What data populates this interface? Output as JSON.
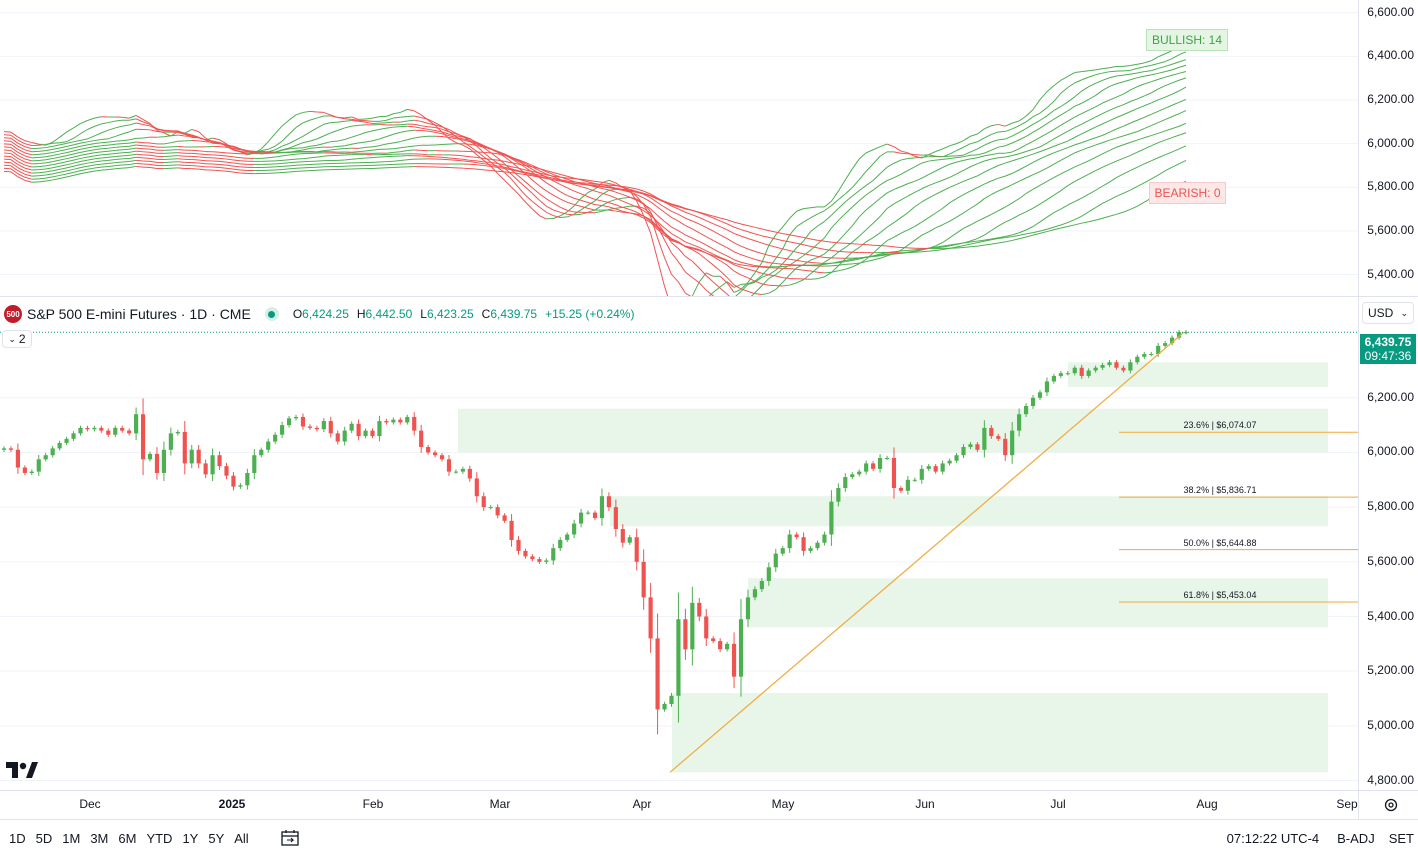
{
  "symbol": {
    "badge": "500",
    "title": "S&P 500 E-mini Futures · 1D · CME",
    "open_label": "O",
    "open": "6,424.25",
    "high_label": "H",
    "high": "6,442.50",
    "low_label": "L",
    "low": "6,423.25",
    "close_label": "C",
    "close": "6,439.75",
    "change": "+15.25 (+0.24%)"
  },
  "collapse_count": "2",
  "currency": "USD",
  "last_price": "6,439.75",
  "countdown": "09:47:36",
  "indicator": {
    "bullish_label": "BULLISH: 14",
    "bearish_label": "BEARISH: 0",
    "axis_ticks": [
      "6,600.00",
      "6,400.00",
      "6,200.00",
      "6,000.00",
      "5,800.00",
      "5,600.00",
      "5,400.00"
    ]
  },
  "price_axis_ticks": [
    "6,200.00",
    "6,000.00",
    "5,800.00",
    "5,600.00",
    "5,400.00",
    "5,200.00",
    "5,000.00",
    "4,800.00"
  ],
  "time_axis": [
    "Dec",
    "2025",
    "Feb",
    "Mar",
    "Apr",
    "May",
    "Jun",
    "Jul",
    "Aug",
    "Sep"
  ],
  "fib_levels": [
    {
      "label": "23.6% | $6,074.07",
      "price": 6074.07
    },
    {
      "label": "38.2% | $5,836.71",
      "price": 5836.71
    },
    {
      "label": "50.0% | $5,644.88",
      "price": 5644.88
    },
    {
      "label": "61.8% | $5,453.04",
      "price": 5453.04
    }
  ],
  "ranges": [
    "1D",
    "5D",
    "1M",
    "3M",
    "6M",
    "YTD",
    "1Y",
    "5Y",
    "All"
  ],
  "clock": "07:12:22 UTC-4",
  "adjust": "B-ADJ",
  "session": "SET",
  "colors": {
    "up": "#4caf50",
    "down": "#ef5350",
    "neutral": "#f5d02a",
    "zone": "#e8f5e9",
    "fib": "#f2a93b",
    "trend": "#f2a93b",
    "accent": "#089981"
  },
  "chart_data": {
    "type": "candlestick",
    "closes": [
      6015,
      6010,
      5945,
      5925,
      5930,
      5975,
      5990,
      6015,
      6035,
      6050,
      6070,
      6090,
      6085,
      6090,
      6080,
      6065,
      6090,
      6080,
      6070,
      6140,
      5975,
      5995,
      5925,
      6010,
      6070,
      6075,
      5960,
      6010,
      5960,
      5920,
      5990,
      5950,
      5915,
      5875,
      5880,
      5925,
      5990,
      6010,
      6040,
      6065,
      6100,
      6125,
      6130,
      6095,
      6090,
      6085,
      6115,
      6070,
      6040,
      6080,
      6105,
      6060,
      6080,
      6060,
      6115,
      6110,
      6120,
      6110,
      6130,
      6080,
      6020,
      6000,
      5990,
      5975,
      5930,
      5930,
      5940,
      5905,
      5840,
      5800,
      5800,
      5770,
      5750,
      5680,
      5640,
      5620,
      5610,
      5600,
      5605,
      5650,
      5680,
      5700,
      5740,
      5780,
      5780,
      5760,
      5840,
      5800,
      5720,
      5670,
      5690,
      5600,
      5470,
      5320,
      5060,
      5080,
      5110,
      5390,
      5280,
      5450,
      5400,
      5320,
      5310,
      5280,
      5300,
      5180,
      5390,
      5470,
      5500,
      5530,
      5580,
      5630,
      5650,
      5700,
      5690,
      5640,
      5650,
      5670,
      5700,
      5820,
      5870,
      5910,
      5920,
      5930,
      5960,
      5940,
      5980,
      5980,
      5870,
      5860,
      5900,
      5900,
      5940,
      5950,
      5930,
      5960,
      5970,
      5990,
      6020,
      6030,
      6010,
      6090,
      6060,
      6050,
      5990,
      6080,
      6140,
      6170,
      6200,
      6220,
      6260,
      6280,
      6290,
      6290,
      6310,
      6280,
      6300,
      6310,
      6320,
      6330,
      6310,
      6300,
      6330,
      6350,
      6360,
      6360,
      6390,
      6400,
      6420,
      6440,
      6440
    ],
    "trend_line": {
      "from": [
        0,
        4830
      ],
      "to": [
        1,
        6440
      ]
    },
    "zones": [
      [
        6000,
        6160
      ],
      [
        5730,
        5840
      ],
      [
        5360,
        5540
      ],
      [
        4830,
        5120
      ],
      [
        6240,
        6330
      ]
    ],
    "ylim": [
      4780,
      6470
    ]
  }
}
